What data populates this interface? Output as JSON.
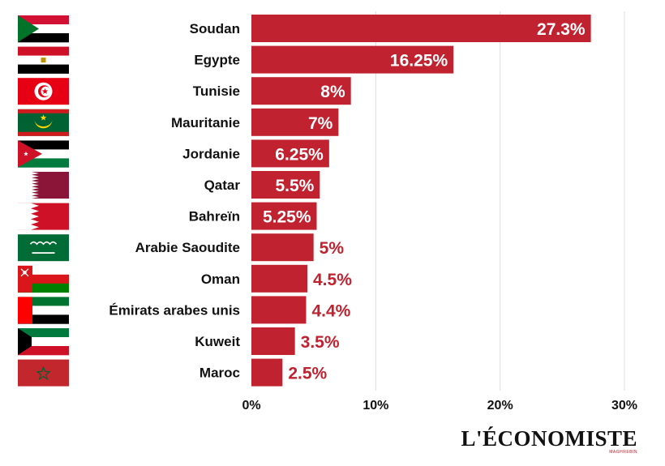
{
  "chart_data": {
    "type": "bar",
    "orientation": "horizontal",
    "categories": [
      "Soudan",
      "Egypte",
      "Tunisie",
      "Mauritanie",
      "Jordanie",
      "Qatar",
      "Bahreïn",
      "Arabie Saoudite",
      "Oman",
      "Émirats arabes unis",
      "Kuweit",
      "Maroc"
    ],
    "values": [
      27.3,
      16.25,
      8,
      7,
      6.25,
      5.5,
      5.25,
      5,
      4.5,
      4.4,
      3.5,
      2.5
    ],
    "value_labels": [
      "27.3%",
      "16.25%",
      "8%",
      "7%",
      "6.25%",
      "5.5%",
      "5.25%",
      "5%",
      "4.5%",
      "4.4%",
      "3.5%",
      "2.5%"
    ],
    "xlim": [
      0,
      30
    ],
    "xticks": [
      0,
      10,
      20,
      30
    ],
    "xtick_labels": [
      "0%",
      "10%",
      "20%",
      "30%"
    ],
    "grid": "vertical",
    "bar_color": "#c0222f",
    "title": "",
    "xlabel": "",
    "ylabel": ""
  },
  "flags": [
    "sudan-flag",
    "egypt-flag",
    "tunisia-flag",
    "mauritania-flag",
    "jordan-flag",
    "qatar-flag",
    "bahrain-flag",
    "saudi-arabia-flag",
    "oman-flag",
    "uae-flag",
    "kuwait-flag",
    "morocco-flag"
  ],
  "logo": {
    "text": "L'ÉCONOMISTE",
    "subtext": "MAGHREBIN"
  }
}
